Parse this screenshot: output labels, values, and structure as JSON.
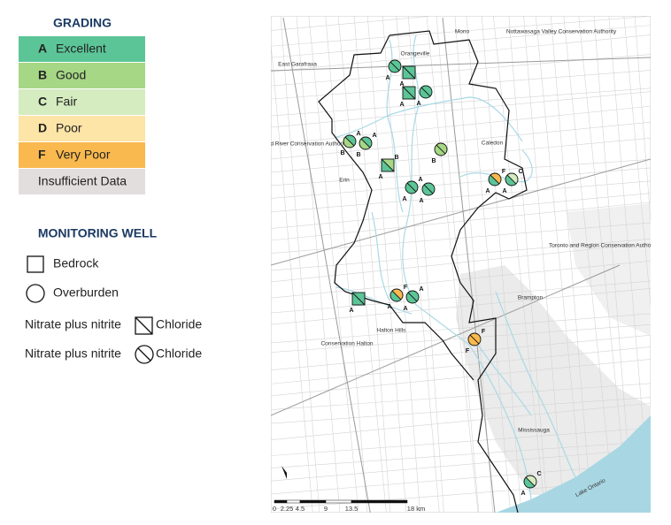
{
  "legend": {
    "grading_title": "GRADING",
    "grades": [
      {
        "letter": "A",
        "label": "Excellent",
        "color": "#5cc597"
      },
      {
        "letter": "B",
        "label": "Good",
        "color": "#a6d785"
      },
      {
        "letter": "C",
        "label": "Fair",
        "color": "#d5ecc0"
      },
      {
        "letter": "D",
        "label": "Poor",
        "color": "#fde4a7"
      },
      {
        "letter": "F",
        "label": "Very Poor",
        "color": "#f9b94e"
      }
    ],
    "insufficient": "Insufficient Data",
    "insufficient_color": "#e2dede",
    "well_title": "MONITORING WELL",
    "bedrock": "Bedrock",
    "overburden": "Overburden",
    "square_key": [
      "Nitrate plus nitrite",
      "Chloride"
    ],
    "circle_key": [
      "Nitrate plus nitrite",
      "Chloride"
    ]
  },
  "map": {
    "places": [
      "Mono",
      "Nottawasaga Valley Conservation Authority",
      "East Garafraxa",
      "Orangeville",
      "Grand River Conservation Authority",
      "Caledon",
      "Erin",
      "Toronto and Region Conservation Authority",
      "Brampton",
      "Conservation Halton",
      "Halton Hills",
      "Mississauga",
      "Lake Ontario"
    ],
    "wells": [
      {
        "shape": "circle",
        "grades": [
          "A"
        ]
      },
      {
        "shape": "square",
        "grades": [
          "A"
        ]
      },
      {
        "shape": "square",
        "grades": [
          "A"
        ]
      },
      {
        "shape": "circle",
        "grades": [
          "A"
        ]
      },
      {
        "shape": "circle",
        "grades": [
          "B",
          "A"
        ]
      },
      {
        "shape": "circle",
        "grades": [
          "B",
          "A"
        ]
      },
      {
        "shape": "square",
        "grades": [
          "A",
          "B"
        ]
      },
      {
        "shape": "circle",
        "grades": [
          "B"
        ]
      },
      {
        "shape": "circle",
        "grades": [
          "A",
          "A"
        ]
      },
      {
        "shape": "circle",
        "grades": [
          "A"
        ]
      },
      {
        "shape": "circle",
        "grades": [
          "A",
          "F"
        ]
      },
      {
        "shape": "circle",
        "grades": [
          "A",
          "C"
        ]
      },
      {
        "shape": "square",
        "grades": [
          "A"
        ]
      },
      {
        "shape": "circle",
        "grades": [
          "A",
          "F"
        ]
      },
      {
        "shape": "circle",
        "grades": [
          "A",
          "A"
        ]
      },
      {
        "shape": "circle",
        "grades": [
          "F",
          "F"
        ]
      },
      {
        "shape": "circle",
        "grades": [
          "A",
          "C"
        ]
      }
    ],
    "scale": [
      "0",
      "2.25",
      "4.5",
      "9",
      "13.5",
      "18 km"
    ]
  }
}
